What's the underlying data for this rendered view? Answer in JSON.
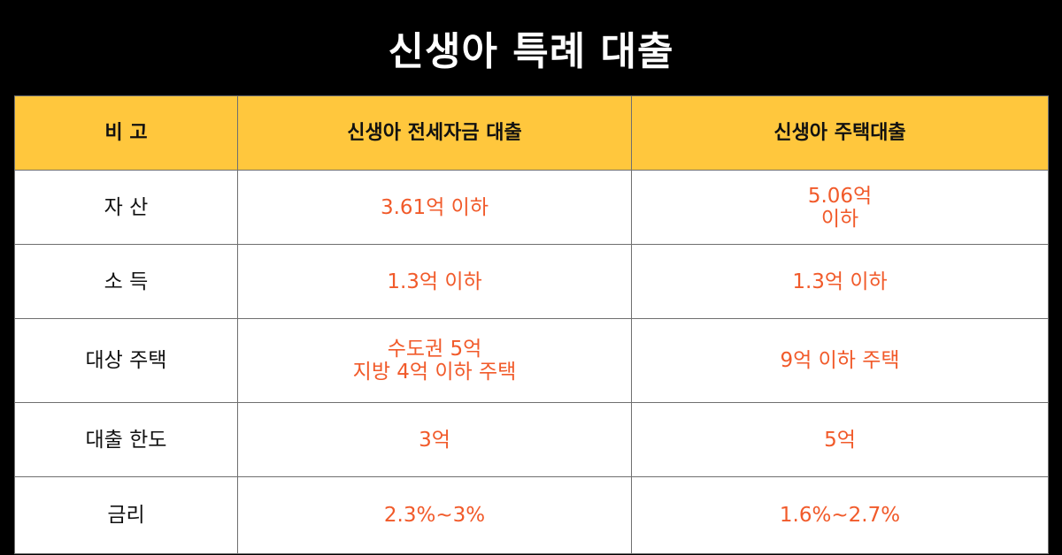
{
  "title": "신생아 특례 대출",
  "headers": [
    "비 고",
    "신생아 전세자금 대출",
    "신생아 주택대출"
  ],
  "rows": [
    {
      "label": "자 산",
      "jeonse": "3.61억 이하",
      "housing": "5.06억\n이하"
    },
    {
      "label": "소 득",
      "jeonse": "1.3억 이하",
      "housing": "1.3억 이하"
    },
    {
      "label": "대상 주택",
      "jeonse": "수도권 5억\n지방 4억 이하 주택",
      "housing": "9억 이하 주택"
    },
    {
      "label": "대출 한도",
      "jeonse": "3억",
      "housing": "5억"
    },
    {
      "label": "금리",
      "jeonse": "2.3%~3%",
      "housing": "1.6%~2.7%"
    }
  ],
  "colors": {
    "background": "#000000",
    "header_fill": "#ffc73d",
    "value_text": "#f15a2a",
    "label_text": "#111111"
  }
}
